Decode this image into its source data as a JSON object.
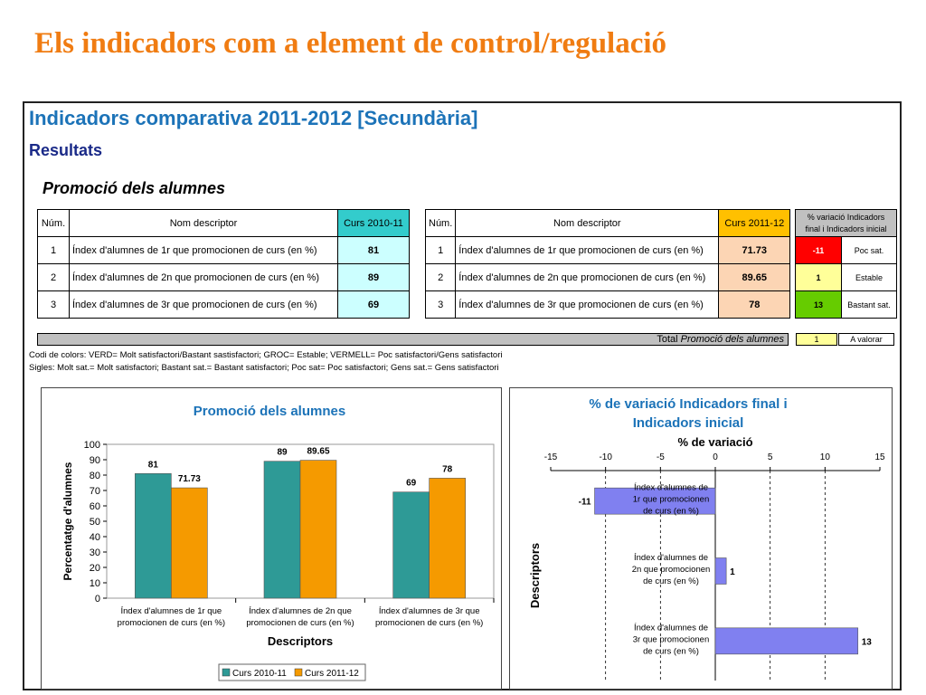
{
  "slide_title": "Els indicadors com a element de control/regulació",
  "sheet": {
    "title": "Indicadors comparativa 2011-2012 [Secundària]",
    "subtitle": "Resultats",
    "section_title": "Promoció dels alumnes"
  },
  "table_2010": {
    "headers": [
      "Núm.",
      "Nom descriptor",
      "Curs 2010-11"
    ],
    "rows": [
      {
        "num": "1",
        "desc": "Índex d'alumnes de 1r que promocionen de curs (en %)",
        "value": "81"
      },
      {
        "num": "2",
        "desc": "Índex d'alumnes de 2n que promocionen de curs (en %)",
        "value": "89"
      },
      {
        "num": "3",
        "desc": "Índex d'alumnes de 3r que promocionen de curs (en %)",
        "value": "69"
      }
    ]
  },
  "table_2011": {
    "headers": [
      "Núm.",
      "Nom descriptor",
      "Curs 2011-12"
    ],
    "rows": [
      {
        "num": "1",
        "desc": "Índex d'alumnes de 1r que promocionen de curs (en %)",
        "value": "71.73"
      },
      {
        "num": "2",
        "desc": "Índex d'alumnes de 2n que promocionen de curs (en %)",
        "value": "89.65"
      },
      {
        "num": "3",
        "desc": "Índex d'alumnes de 3r que promocionen de curs (en %)",
        "value": "78"
      }
    ]
  },
  "variation_table": {
    "header_line1": "% variació Indicadors",
    "header_line2": "final i Indicadors inicial",
    "rows": [
      {
        "value": "-11",
        "status": "Poc sat.",
        "color": "#ff0000"
      },
      {
        "value": "1",
        "status": "Estable",
        "color": "#ffff99"
      },
      {
        "value": "13",
        "status": "Bastant sat.",
        "color": "#66cc00"
      }
    ]
  },
  "total": {
    "label_prefix": "Total ",
    "label_italic": "Promoció dels alumnes",
    "value": "1",
    "status": "A valorar"
  },
  "legend_notes": {
    "line1": "Codi de colors: VERD= Molt satisfactori/Bastant sastisfactori; GROC= Estable; VERMELL= Poc satisfactori/Gens satisfactori",
    "line2": "Sigles: Molt sat.= Molt satisfactori; Bastant sat.= Bastant satisfactori; Poc sat= Poc satisfactori; Gens sat.= Gens satisfactori"
  },
  "chart_data": [
    {
      "type": "bar",
      "title": "Promoció dels alumnes",
      "xlabel": "Descriptors",
      "ylabel": "Percentatge d'alumnes",
      "ylim": [
        0,
        100
      ],
      "yticks": [
        0,
        10,
        20,
        30,
        40,
        50,
        60,
        70,
        80,
        90,
        100
      ],
      "categories": [
        [
          "Índex d'alumnes de 1r que",
          "promocionen de curs (en %)"
        ],
        [
          "Índex d'alumnes de 2n que",
          "promocionen de curs (en %)"
        ],
        [
          "Índex d'alumnes de 3r que",
          "promocionen de curs (en %)"
        ]
      ],
      "series": [
        {
          "name": "Curs 2010-11",
          "values": [
            81,
            89,
            69
          ],
          "labels": [
            "81",
            "89",
            "69"
          ],
          "color": "#2e9a96"
        },
        {
          "name": "Curs 2011-12",
          "values": [
            71.73,
            89.65,
            78
          ],
          "labels": [
            "71.73",
            "89.65",
            "78"
          ],
          "color": "#f59a00"
        }
      ],
      "legend": "bottom"
    },
    {
      "type": "bar",
      "orientation": "horizontal",
      "title_lines": [
        "% de variació Indicadors final i",
        "Indicadors inicial"
      ],
      "xlabel": "% de variació",
      "ylabel": "Descriptors",
      "xlim": [
        -15,
        15
      ],
      "xticks": [
        -15,
        -10,
        -5,
        0,
        5,
        10,
        15
      ],
      "categories": [
        [
          "Índex d'alumnes de",
          "1r que promocionen",
          "de curs (en %)"
        ],
        [
          "Índex d'alumnes de",
          "2n que promocionen",
          "de curs (en %)"
        ],
        [
          "Índex d'alumnes de",
          "3r que promocionen",
          "de curs (en %)"
        ]
      ],
      "values": [
        -11,
        1,
        13
      ],
      "labels": [
        "-11",
        "1",
        "13"
      ],
      "color": "#8080f0"
    }
  ]
}
